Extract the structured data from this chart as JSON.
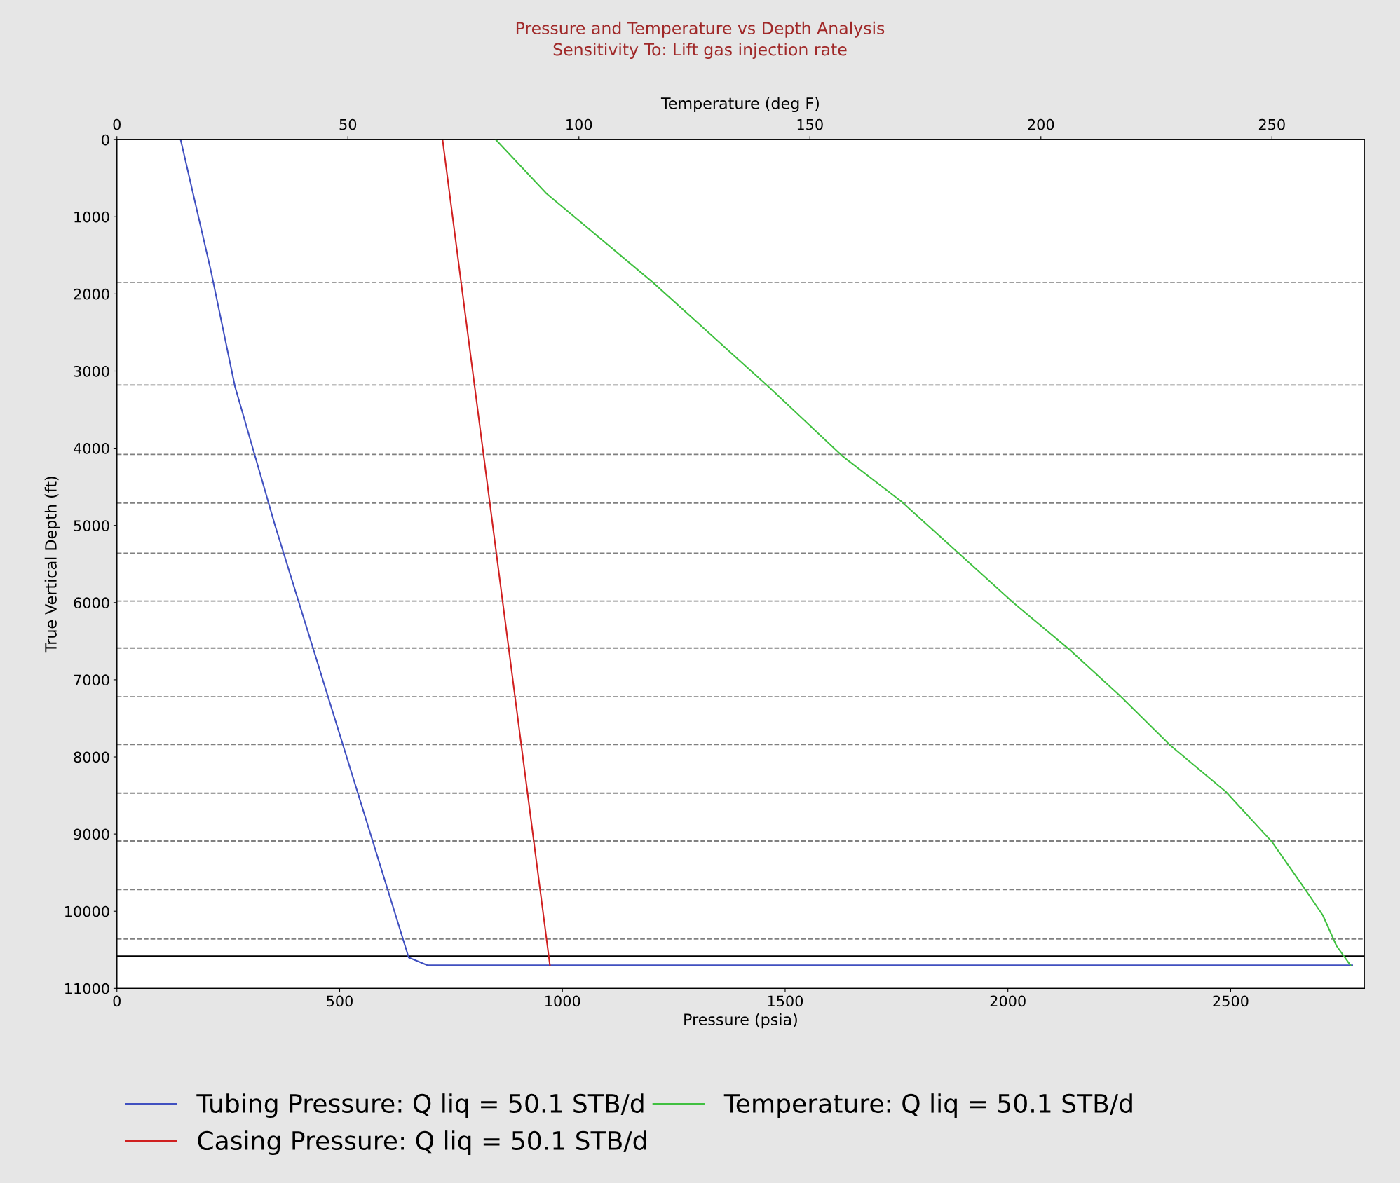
{
  "chart_data": {
    "type": "line",
    "title": "Pressure and Temperature vs Depth Analysis",
    "subtitle": "Sensitivity To: Lift gas injection rate",
    "xlabel": "Pressure (psia)",
    "x2label": "Temperature (deg F)",
    "ylabel": "True Vertical Depth (ft)",
    "xlim": [
      0,
      2800
    ],
    "xticks": [
      0,
      500,
      1000,
      1500,
      2000,
      2500
    ],
    "x2lim": [
      0,
      270
    ],
    "x2ticks": [
      0,
      50,
      100,
      150,
      200,
      250
    ],
    "ylim": [
      11000,
      0
    ],
    "yticks": [
      0,
      1000,
      2000,
      3000,
      4000,
      5000,
      6000,
      7000,
      8000,
      9000,
      10000,
      11000
    ],
    "grid": false,
    "legend": "bottom",
    "line_style": "solid",
    "marker": "none",
    "series": [
      {
        "name": "Tubing Pressure: Q liq = 50.1 STB/d",
        "color": "#4050c0",
        "x": [
          143,
          211,
          265,
          355,
          655,
          697,
          2773
        ],
        "values": [
          0,
          1700,
          3200,
          5000,
          10600,
          10700,
          10700
        ]
      },
      {
        "name": "Casing Pressure: Q liq = 50.1 STB/d",
        "color": "#d02020",
        "x": [
          731,
          972
        ],
        "values": [
          0,
          10700
        ]
      },
      {
        "name": "Temperature: Q liq = 50.1 STB/d",
        "color": "#40c040",
        "axis": "x2",
        "x": [
          82,
          93,
          116,
          141,
          157,
          170,
          182,
          194,
          206,
          217,
          228,
          240,
          250,
          257,
          261,
          264,
          267
        ],
        "values": [
          0,
          700,
          1850,
          3200,
          4100,
          4700,
          5350,
          6000,
          6600,
          7200,
          7850,
          8450,
          9100,
          9700,
          10050,
          10450,
          10700
        ]
      }
    ],
    "ref_lines": [
      {
        "axis": "y",
        "value": 1850,
        "label": null,
        "color": "#808080",
        "line_style": "dashed"
      },
      {
        "axis": "y",
        "value": 3180,
        "label": null,
        "color": "#808080",
        "line_style": "dashed"
      },
      {
        "axis": "y",
        "value": 4080,
        "label": null,
        "color": "#808080",
        "line_style": "dashed"
      },
      {
        "axis": "y",
        "value": 4710,
        "label": null,
        "color": "#808080",
        "line_style": "dashed"
      },
      {
        "axis": "y",
        "value": 5360,
        "label": null,
        "color": "#808080",
        "line_style": "dashed"
      },
      {
        "axis": "y",
        "value": 5980,
        "label": null,
        "color": "#808080",
        "line_style": "dashed"
      },
      {
        "axis": "y",
        "value": 6590,
        "label": null,
        "color": "#808080",
        "line_style": "dashed"
      },
      {
        "axis": "y",
        "value": 7220,
        "label": null,
        "color": "#808080",
        "line_style": "dashed"
      },
      {
        "axis": "y",
        "value": 7840,
        "label": null,
        "color": "#808080",
        "line_style": "dashed"
      },
      {
        "axis": "y",
        "value": 8470,
        "label": null,
        "color": "#808080",
        "line_style": "dashed"
      },
      {
        "axis": "y",
        "value": 9090,
        "label": null,
        "color": "#808080",
        "line_style": "dashed"
      },
      {
        "axis": "y",
        "value": 9720,
        "label": null,
        "color": "#808080",
        "line_style": "dashed"
      },
      {
        "axis": "y",
        "value": 10360,
        "label": null,
        "color": "#808080",
        "line_style": "dashed"
      },
      {
        "axis": "y",
        "value": 10580,
        "label": null,
        "color": "#000000",
        "line_style": "solid"
      }
    ]
  }
}
